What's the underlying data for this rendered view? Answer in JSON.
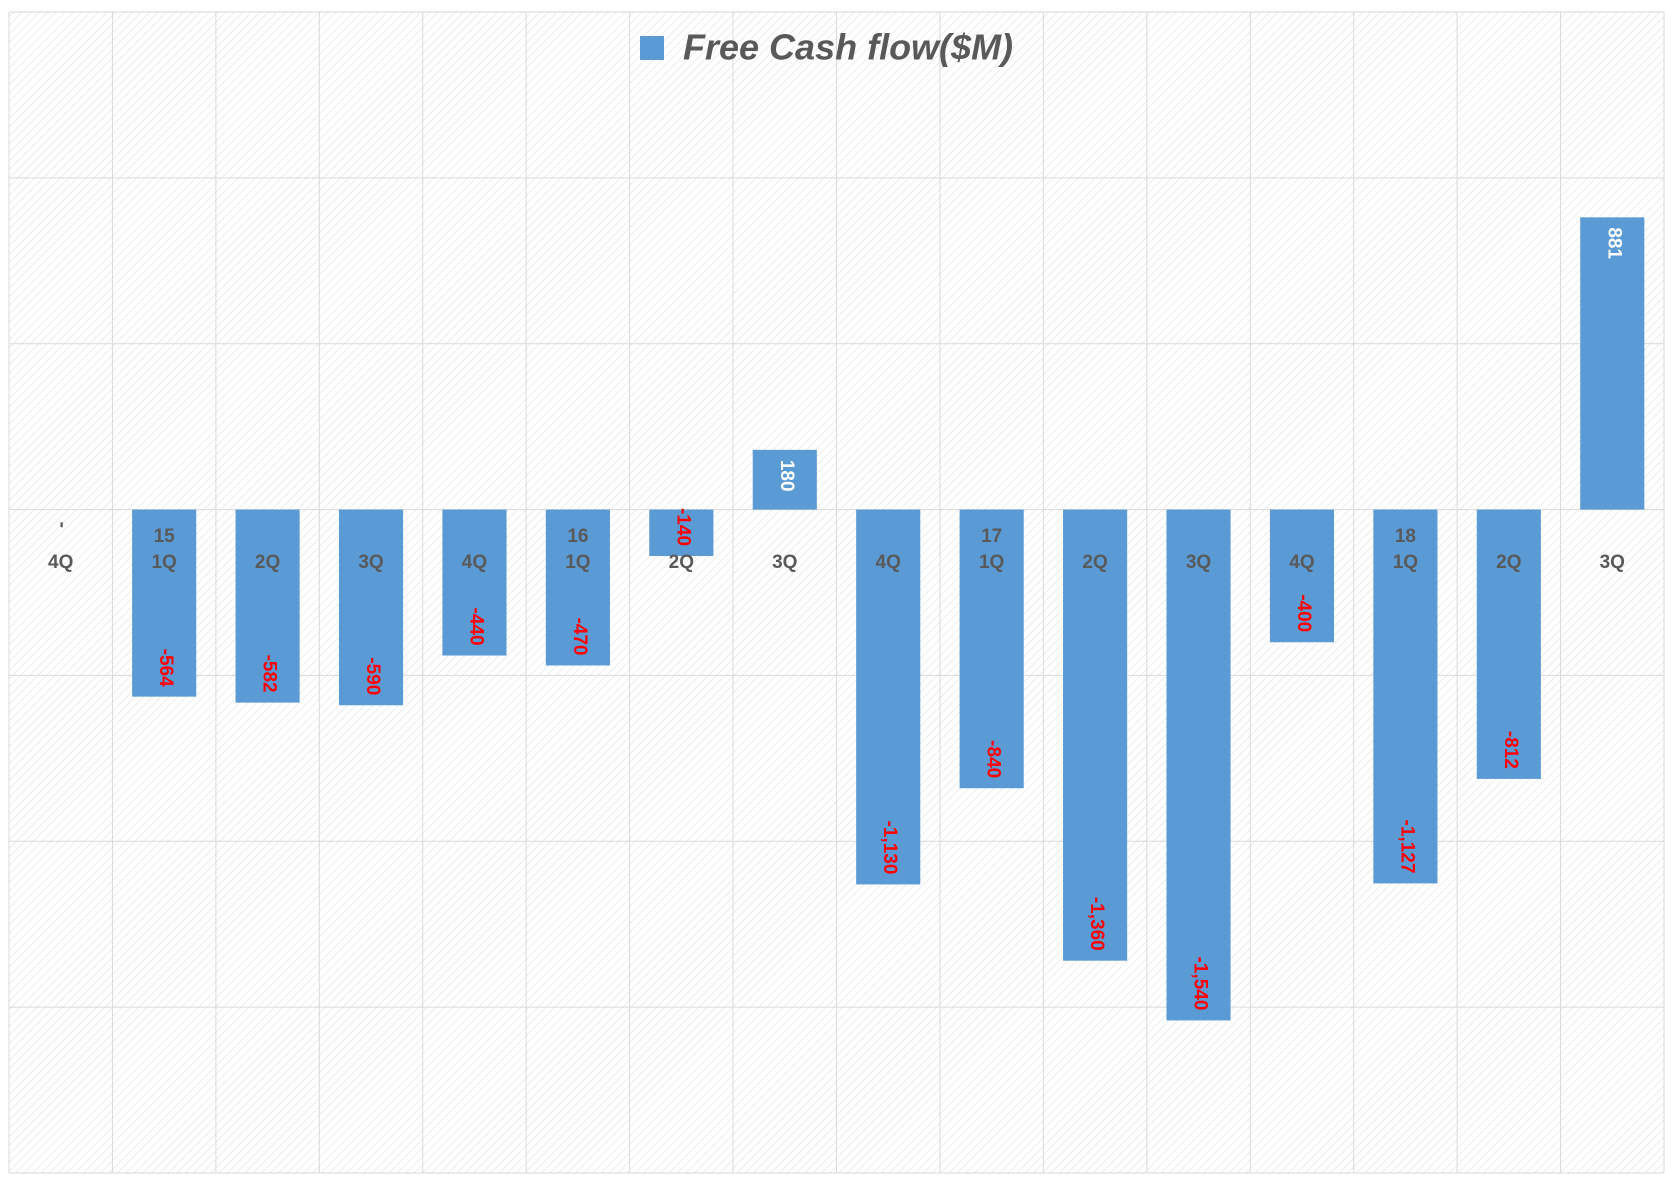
{
  "chart_data": {
    "type": "bar",
    "categories": [
      "4Q",
      "1Q",
      "2Q",
      "3Q",
      "4Q",
      "1Q",
      "2Q",
      "3Q",
      "4Q",
      "1Q",
      "2Q",
      "3Q",
      "4Q",
      "1Q",
      "2Q",
      "3Q"
    ],
    "year_labels": [
      null,
      "15",
      null,
      null,
      null,
      "16",
      null,
      null,
      null,
      "17",
      null,
      null,
      null,
      "18",
      null,
      null
    ],
    "series": [
      {
        "name": "Free Cash flow($M)",
        "color": "#5b9bd5",
        "values": [
          0,
          -564,
          -582,
          -590,
          -440,
          -470,
          -140,
          180,
          -1130,
          -840,
          -1360,
          -1540,
          -400,
          -1127,
          -812,
          881
        ],
        "value_labels": [
          "-",
          "-564",
          "-582",
          "-590",
          "-440",
          "-470",
          "-140",
          "180",
          "-1,130",
          "-840",
          "-1,360",
          "-1,540",
          "-400",
          "-1,127",
          "-812",
          "881"
        ]
      }
    ],
    "label_color": "#ffffff",
    "negative_label_color": "#ff0000",
    "ylim": [
      -2000,
      1500
    ],
    "yticks": [
      -2000,
      -1500,
      -1000,
      -500,
      0,
      500,
      1000,
      1500
    ],
    "grid": true,
    "legend": "top"
  }
}
